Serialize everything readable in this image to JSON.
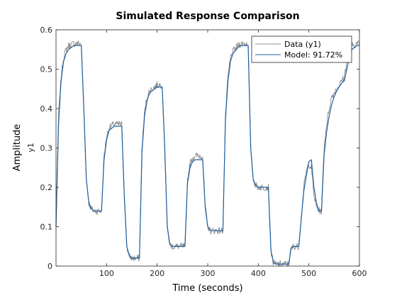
{
  "chart_data": {
    "type": "line",
    "title": "Simulated Response Comparison",
    "xlabel": "Time (seconds)",
    "ylabel": "Amplitude",
    "channel_label": "y1",
    "xlim": [
      0,
      600
    ],
    "ylim": [
      0,
      0.6
    ],
    "xticks": [
      100,
      200,
      300,
      400,
      500,
      600
    ],
    "yticks": [
      0,
      0.1,
      0.2,
      0.3,
      0.4,
      0.5,
      0.6
    ],
    "grid": false,
    "legend_position": "top-right",
    "series": [
      {
        "name": "Data (y1)",
        "color": "#8c8c8c",
        "noisy": true,
        "x": [
          0,
          5,
          10,
          15,
          20,
          25,
          30,
          35,
          45,
          50,
          55,
          60,
          65,
          70,
          75,
          80,
          90,
          95,
          100,
          105,
          110,
          115,
          125,
          130,
          135,
          140,
          145,
          150,
          160,
          165,
          170,
          175,
          180,
          185,
          195,
          200,
          210,
          215,
          220,
          225,
          230,
          235,
          240,
          245,
          255,
          260,
          265,
          270,
          275,
          280,
          290,
          295,
          300,
          305,
          310,
          315,
          325,
          330,
          335,
          340,
          345,
          350,
          360,
          365,
          370,
          375,
          380,
          385,
          390,
          395,
          400,
          410,
          415,
          420,
          425,
          430,
          435,
          440,
          445,
          455,
          460,
          465,
          470,
          475,
          480,
          490,
          495,
          500,
          505,
          510,
          515,
          520,
          525,
          530,
          535,
          540,
          545,
          550,
          555,
          560,
          565,
          570,
          575,
          580,
          585,
          590,
          595,
          600
        ],
        "y": [
          0.1,
          0.38,
          0.48,
          0.53,
          0.55,
          0.56,
          0.562,
          0.565,
          0.565,
          0.565,
          0.4,
          0.22,
          0.16,
          0.145,
          0.14,
          0.14,
          0.14,
          0.28,
          0.33,
          0.35,
          0.357,
          0.36,
          0.36,
          0.36,
          0.18,
          0.05,
          0.025,
          0.02,
          0.02,
          0.02,
          0.3,
          0.39,
          0.43,
          0.445,
          0.455,
          0.46,
          0.46,
          0.3,
          0.1,
          0.055,
          0.05,
          0.05,
          0.05,
          0.05,
          0.05,
          0.22,
          0.26,
          0.275,
          0.28,
          0.28,
          0.28,
          0.15,
          0.1,
          0.09,
          0.09,
          0.09,
          0.09,
          0.09,
          0.38,
          0.48,
          0.53,
          0.545,
          0.56,
          0.565,
          0.565,
          0.565,
          0.565,
          0.3,
          0.22,
          0.205,
          0.2,
          0.2,
          0.2,
          0.2,
          0.04,
          0.008,
          0.005,
          0.005,
          0.005,
          0.005,
          0.005,
          0.045,
          0.05,
          0.05,
          0.05,
          0.2,
          0.24,
          0.26,
          0.25,
          0.18,
          0.15,
          0.14,
          0.14,
          0.3,
          0.36,
          0.4,
          0.43,
          0.44,
          0.45,
          0.46,
          0.47,
          0.48,
          0.52,
          0.55,
          0.56,
          0.562,
          0.565,
          0.565
        ]
      },
      {
        "name": "Model: 91.72%",
        "color": "#1f5f9e",
        "noisy": false,
        "x": [
          0,
          5,
          10,
          15,
          20,
          25,
          30,
          35,
          45,
          50,
          55,
          60,
          65,
          70,
          75,
          80,
          90,
          95,
          100,
          105,
          110,
          115,
          125,
          130,
          135,
          140,
          145,
          150,
          160,
          165,
          170,
          175,
          180,
          185,
          195,
          200,
          210,
          215,
          220,
          225,
          230,
          235,
          240,
          245,
          255,
          260,
          265,
          270,
          275,
          280,
          290,
          295,
          300,
          305,
          310,
          315,
          325,
          330,
          335,
          340,
          345,
          350,
          360,
          365,
          370,
          375,
          380,
          385,
          390,
          395,
          400,
          410,
          415,
          420,
          425,
          430,
          435,
          440,
          445,
          455,
          460,
          465,
          470,
          475,
          480,
          490,
          495,
          500,
          505,
          510,
          515,
          520,
          525,
          530,
          535,
          540,
          545,
          550,
          555,
          560,
          565,
          570,
          575,
          580,
          585,
          590,
          595,
          600
        ],
        "y": [
          0.1,
          0.36,
          0.47,
          0.52,
          0.54,
          0.55,
          0.555,
          0.56,
          0.56,
          0.56,
          0.4,
          0.22,
          0.16,
          0.145,
          0.14,
          0.14,
          0.14,
          0.27,
          0.32,
          0.345,
          0.35,
          0.355,
          0.355,
          0.355,
          0.18,
          0.05,
          0.025,
          0.02,
          0.02,
          0.02,
          0.29,
          0.38,
          0.42,
          0.44,
          0.45,
          0.455,
          0.455,
          0.3,
          0.1,
          0.055,
          0.05,
          0.05,
          0.05,
          0.05,
          0.05,
          0.21,
          0.25,
          0.265,
          0.27,
          0.27,
          0.27,
          0.15,
          0.1,
          0.09,
          0.09,
          0.09,
          0.09,
          0.09,
          0.37,
          0.47,
          0.52,
          0.54,
          0.555,
          0.56,
          0.56,
          0.56,
          0.56,
          0.3,
          0.22,
          0.205,
          0.2,
          0.2,
          0.2,
          0.2,
          0.04,
          0.008,
          0.005,
          0.005,
          0.005,
          0.005,
          0.005,
          0.045,
          0.05,
          0.05,
          0.05,
          0.19,
          0.23,
          0.265,
          0.27,
          0.2,
          0.16,
          0.14,
          0.14,
          0.28,
          0.34,
          0.38,
          0.41,
          0.43,
          0.445,
          0.455,
          0.465,
          0.47,
          0.5,
          0.53,
          0.55,
          0.555,
          0.56,
          0.56
        ]
      }
    ]
  }
}
